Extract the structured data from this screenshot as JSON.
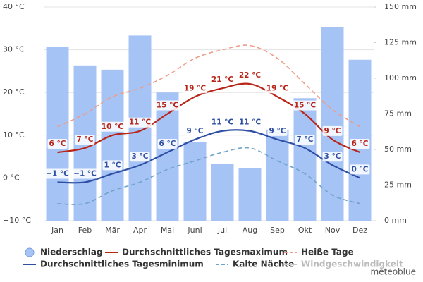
{
  "chart_data": {
    "type": "bar-line",
    "categories": [
      "Jan",
      "Feb",
      "Mär",
      "Apr",
      "Mai",
      "Juni",
      "Jul",
      "Aug",
      "Sep",
      "Okt",
      "Nov",
      "Dez"
    ],
    "ylim": [
      -10,
      40
    ],
    "yticks": [
      {
        "value": -10,
        "label": "−10 °C"
      },
      {
        "value": 0,
        "label": "0 °C"
      },
      {
        "value": 10,
        "label": "10 °C"
      },
      {
        "value": 20,
        "label": "20 °C"
      },
      {
        "value": 30,
        "label": "30 °C"
      },
      {
        "value": 40,
        "label": "40 °C"
      }
    ],
    "y2lim": [
      0,
      150
    ],
    "y2ticks": [
      {
        "value": 0,
        "label": "0 mm"
      },
      {
        "value": 25,
        "label": "25 mm"
      },
      {
        "value": 50,
        "label": "50 mm"
      },
      {
        "value": 75,
        "label": "75 mm"
      },
      {
        "value": 100,
        "label": "100 mm"
      },
      {
        "value": 125,
        "label": "125 mm"
      },
      {
        "value": 150,
        "label": "150 mm"
      }
    ],
    "grid": true,
    "series": [
      {
        "name": "Niederschlag",
        "type": "bar",
        "axis": "y2",
        "color": "#a6c3f5",
        "values": [
          122,
          109,
          106,
          130,
          90,
          55,
          40,
          37,
          64,
          86,
          136,
          113
        ]
      },
      {
        "name": "Durchschnittliches Tagesmaximum",
        "type": "line",
        "color": "#b8261a",
        "values": [
          6,
          7,
          10,
          11,
          15,
          19,
          21,
          22,
          19,
          15,
          9,
          6
        ],
        "value_labels": [
          "6 °C",
          "7 °C",
          "10 °C",
          "11 °C",
          "15 °C",
          "19 °C",
          "21 °C",
          "22 °C",
          "19 °C",
          "15 °C",
          "9 °C",
          "6 °C"
        ]
      },
      {
        "name": "Heiße Tage",
        "type": "line",
        "dashed": true,
        "color": "#ee9c88",
        "values": [
          12,
          15,
          19,
          21,
          24,
          28,
          30,
          31,
          28,
          22,
          16,
          12
        ]
      },
      {
        "name": "Durchschnittliches Tagesminimum",
        "type": "line",
        "color": "#2e4fa3",
        "values": [
          -1,
          -1,
          1,
          3,
          6,
          9,
          11,
          11,
          9,
          7,
          3,
          0
        ],
        "value_labels": [
          "−1 °C",
          "−1 °C",
          "1 °C",
          "3 °C",
          "6 °C",
          "9 °C",
          "11 °C",
          "11 °C",
          "9 °C",
          "7 °C",
          "3 °C",
          "0 °C"
        ]
      },
      {
        "name": "Kalte Nächte",
        "type": "line",
        "dashed": true,
        "color": "#6fa3c7",
        "values": [
          -6,
          -6,
          -3,
          -1,
          2,
          4,
          6,
          7,
          4,
          1,
          -4,
          -6
        ]
      },
      {
        "name": "Windgeschwindigkeit",
        "type": "line",
        "hidden": true,
        "color": "#c8c8c8",
        "values": [
          null,
          null,
          null,
          null,
          null,
          null,
          null,
          null,
          null,
          null,
          null,
          null
        ]
      }
    ],
    "credit": "meteoblue"
  }
}
